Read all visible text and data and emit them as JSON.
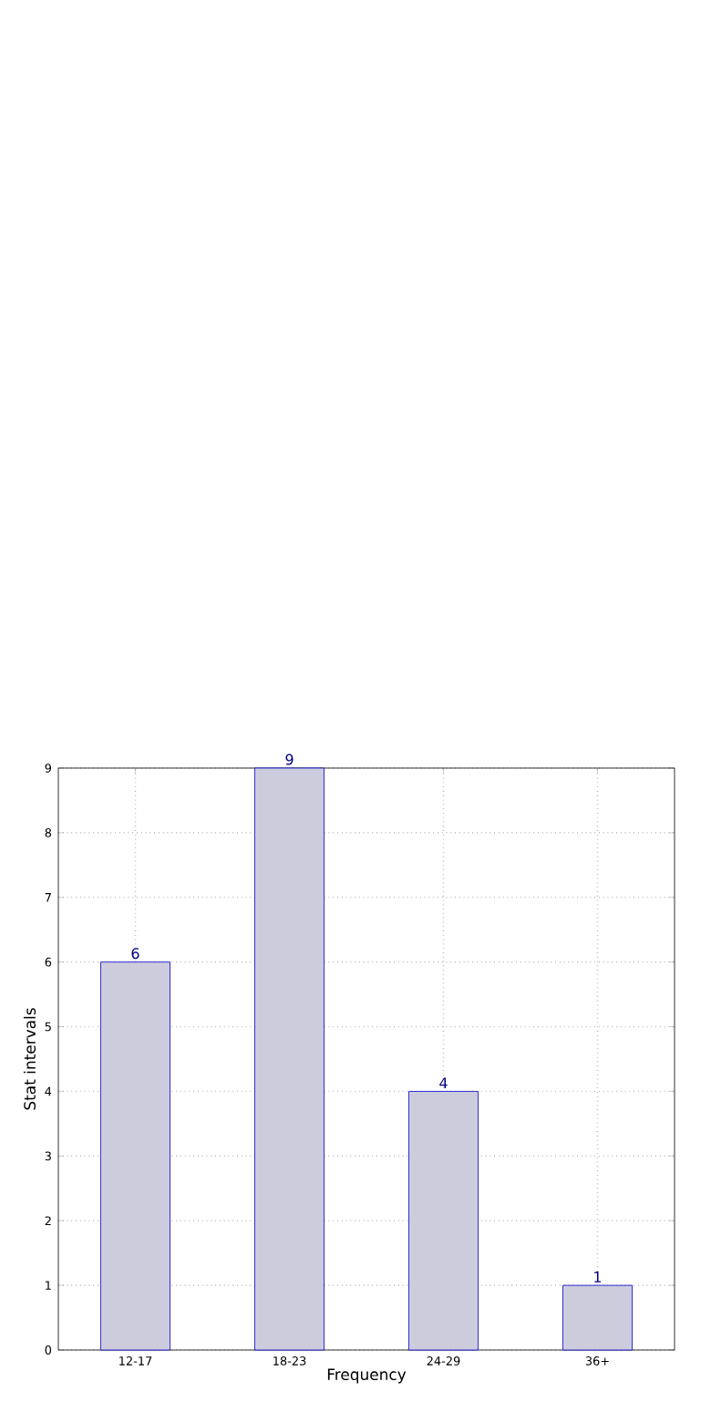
{
  "chart_data": {
    "type": "bar",
    "xlabel": "Frequency",
    "ylabel": "Stat intervals",
    "categories": [
      "12-17",
      "18-23",
      "24-29",
      "36+"
    ],
    "values": [
      6,
      9,
      4,
      1
    ],
    "color": "#ccccdd",
    "ylim": [
      0,
      9
    ],
    "yticks": [
      0,
      1,
      2,
      3,
      4,
      5,
      6,
      7,
      8,
      9
    ],
    "grid": true,
    "data_labels": true
  }
}
